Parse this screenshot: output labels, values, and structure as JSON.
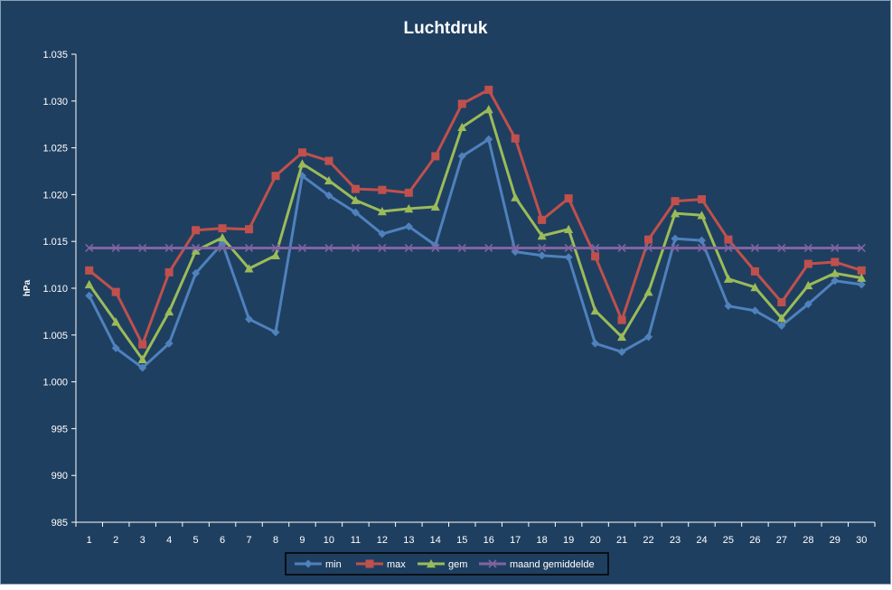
{
  "chart_data": {
    "type": "line",
    "title": "Luchtdruk",
    "ylabel": "hPa",
    "xlabel": "",
    "ylim": [
      985,
      1035
    ],
    "y_ticks": [
      "985",
      "990",
      "995",
      "1.000",
      "1.005",
      "1.010",
      "1.015",
      "1.020",
      "1.025",
      "1.030",
      "1.035"
    ],
    "x": [
      "1",
      "2",
      "3",
      "4",
      "5",
      "6",
      "7",
      "8",
      "9",
      "10",
      "11",
      "12",
      "13",
      "14",
      "15",
      "16",
      "17",
      "18",
      "19",
      "20",
      "21",
      "22",
      "23",
      "24",
      "25",
      "26",
      "27",
      "28",
      "29",
      "30"
    ],
    "grid": false,
    "legend": "bottom",
    "colors": {
      "background": "#1f3f60",
      "plot_area": "#1f3f60",
      "axis": "#ffffff",
      "text": "#ffffff"
    },
    "series": [
      {
        "name": "min",
        "color": "#4f81bd",
        "marker": "diamond",
        "values": [
          1009.2,
          1003.6,
          1001.5,
          1004.1,
          1011.6,
          1014.8,
          1006.7,
          1005.3,
          1022.0,
          1019.9,
          1018.1,
          1015.8,
          1016.6,
          1014.6,
          1024.1,
          1025.9,
          1013.9,
          1013.5,
          1013.3,
          1004.1,
          1003.2,
          1004.8,
          1015.3,
          1015.1,
          1008.1,
          1007.6,
          1006.0,
          1008.3,
          1010.8,
          1010.4
        ]
      },
      {
        "name": "max",
        "color": "#c0504d",
        "marker": "square",
        "values": [
          1011.9,
          1009.6,
          1004.0,
          1011.7,
          1016.2,
          1016.4,
          1016.3,
          1022.0,
          1024.5,
          1023.6,
          1020.6,
          1020.5,
          1020.2,
          1024.1,
          1029.7,
          1031.2,
          1026.0,
          1017.3,
          1019.6,
          1013.4,
          1006.6,
          1015.2,
          1019.3,
          1019.5,
          1015.2,
          1011.8,
          1008.5,
          1012.6,
          1012.8,
          1011.9
        ]
      },
      {
        "name": "gem",
        "color": "#9bbb59",
        "marker": "triangle",
        "values": [
          1010.4,
          1006.4,
          1002.4,
          1007.5,
          1014.0,
          1015.4,
          1012.1,
          1013.5,
          1023.3,
          1021.5,
          1019.4,
          1018.2,
          1018.5,
          1018.7,
          1027.2,
          1029.1,
          1019.7,
          1015.6,
          1016.3,
          1007.6,
          1004.8,
          1009.6,
          1018.0,
          1017.8,
          1011.0,
          1010.1,
          1006.8,
          1010.3,
          1011.6,
          1011.1
        ]
      },
      {
        "name": "maand gemiddelde",
        "color": "#8064a2",
        "marker": "x",
        "values": [
          1014.3,
          1014.3,
          1014.3,
          1014.3,
          1014.3,
          1014.3,
          1014.3,
          1014.3,
          1014.3,
          1014.3,
          1014.3,
          1014.3,
          1014.3,
          1014.3,
          1014.3,
          1014.3,
          1014.3,
          1014.3,
          1014.3,
          1014.3,
          1014.3,
          1014.3,
          1014.3,
          1014.3,
          1014.3,
          1014.3,
          1014.3,
          1014.3,
          1014.3,
          1014.3
        ]
      }
    ]
  }
}
